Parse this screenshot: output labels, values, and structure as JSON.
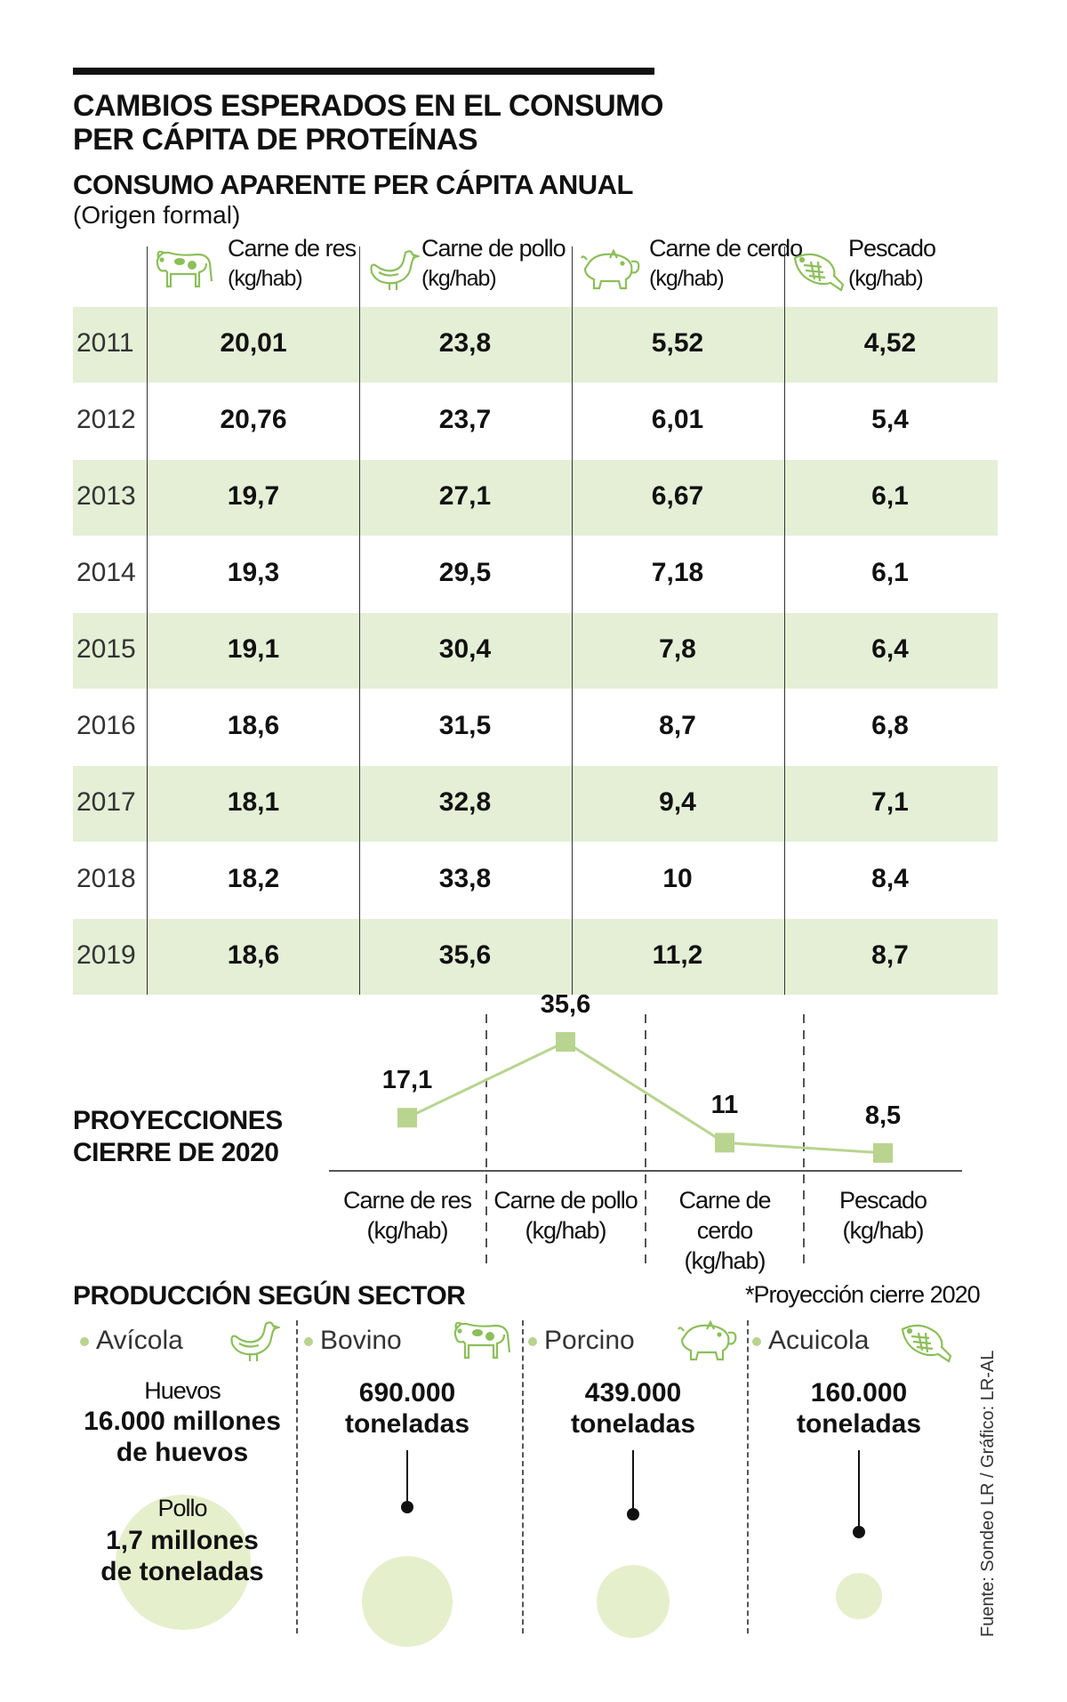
{
  "title_line1": "CAMBIOS ESPERADOS EN EL CONSUMO",
  "title_line2": "PER CÁPITA DE PROTEÍNAS",
  "subtitle": "CONSUMO APARENTE PER CÁPITA ANUAL",
  "subnote": "(Origen formal)",
  "accent_color": "#e4efd6",
  "line_color": "#b8d48f",
  "table": {
    "columns": [
      {
        "name": "Carne de res",
        "unit": "(kg/hab)",
        "icon": "cow-icon"
      },
      {
        "name": "Carne de pollo",
        "unit": "(kg/hab)",
        "icon": "chicken-icon"
      },
      {
        "name": "Carne de cerdo",
        "unit": "(kg/hab)",
        "icon": "pig-icon"
      },
      {
        "name": "Pescado",
        "unit": "(kg/hab)",
        "icon": "fish-icon"
      }
    ],
    "rows": [
      {
        "year": "2011",
        "values": [
          "20,01",
          "23,8",
          "5,52",
          "4,52"
        ]
      },
      {
        "year": "2012",
        "values": [
          "20,76",
          "23,7",
          "6,01",
          "5,4"
        ]
      },
      {
        "year": "2013",
        "values": [
          "19,7",
          "27,1",
          "6,67",
          "6,1"
        ]
      },
      {
        "year": "2014",
        "values": [
          "19,3",
          "29,5",
          "7,18",
          "6,1"
        ]
      },
      {
        "year": "2015",
        "values": [
          "19,1",
          "30,4",
          "7,8",
          "6,4"
        ]
      },
      {
        "year": "2016",
        "values": [
          "18,6",
          "31,5",
          "8,7",
          "6,8"
        ]
      },
      {
        "year": "2017",
        "values": [
          "18,1",
          "32,8",
          "9,4",
          "7,1"
        ]
      },
      {
        "year": "2018",
        "values": [
          "18,2",
          "33,8",
          "10",
          "8,4"
        ]
      },
      {
        "year": "2019",
        "values": [
          "18,6",
          "35,6",
          "11,2",
          "8,7"
        ]
      }
    ]
  },
  "projections": {
    "title_line1": "PROYECCIONES",
    "title_line2": "CIERRE DE 2020"
  },
  "chart_data": {
    "type": "line",
    "categories": [
      "Carne de res",
      "Carne de pollo",
      "Carne de cerdo",
      "Pescado"
    ],
    "category_units": [
      "(kg/hab)",
      "(kg/hab)",
      "(kg/hab)",
      "(kg/hab)"
    ],
    "values": [
      17.1,
      35.6,
      11,
      8.5
    ],
    "value_labels": [
      "17,1",
      "35,6",
      "11",
      "8,5"
    ],
    "ylim": [
      0,
      40
    ]
  },
  "production": {
    "title": "PRODUCCIÓN SEGÚN SECTOR",
    "note": "*Proyección cierre 2020",
    "sectors": [
      {
        "name": "Avícola",
        "icon": "chicken-icon",
        "label1": "Huevos",
        "value1": "16.000 millones",
        "value1b": "de huevos",
        "label2": "Pollo",
        "value2": "1,7 millones",
        "value2b": "de toneladas"
      },
      {
        "name": "Bovino",
        "icon": "cow-icon",
        "value": "690.000",
        "unit": "toneladas"
      },
      {
        "name": "Porcino",
        "icon": "pig-icon",
        "value": "439.000",
        "unit": "toneladas"
      },
      {
        "name": "Acuicola",
        "icon": "fish-icon",
        "value": "160.000",
        "unit": "toneladas"
      }
    ]
  },
  "source": "Fuente: Sondeo LR / Gráfico: LR-AL"
}
